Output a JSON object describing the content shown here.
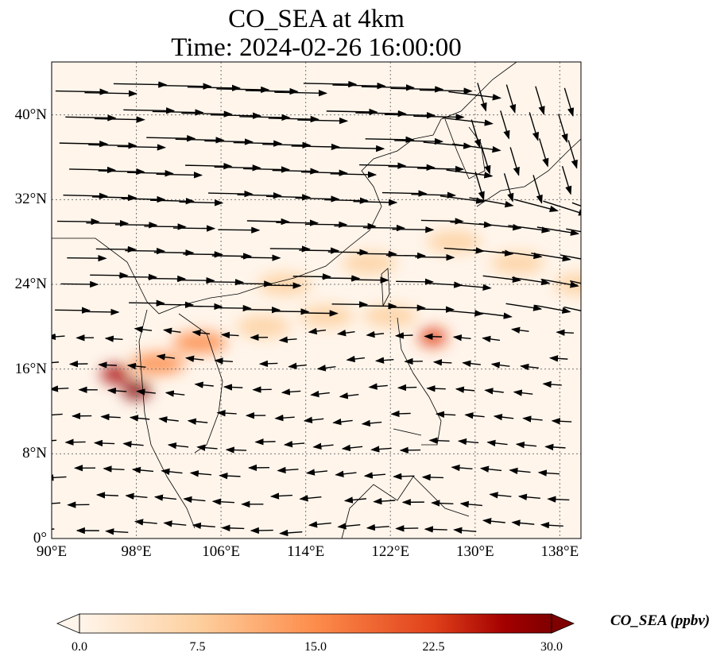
{
  "title_line1": "CO_SEA at 4km",
  "title_line2": "Time: 2024-02-26 16:00:00",
  "chart_data": {
    "type": "heatmap",
    "title": "CO_SEA at 4km / Time: 2024-02-26 16:00:00",
    "lon_range": [
      90,
      140
    ],
    "lat_range": [
      0,
      45
    ],
    "x_ticks": [
      {
        "v": 90,
        "label": "90°E"
      },
      {
        "v": 98,
        "label": "98°E"
      },
      {
        "v": 106,
        "label": "106°E"
      },
      {
        "v": 114,
        "label": "114°E"
      },
      {
        "v": 122,
        "label": "122°E"
      },
      {
        "v": 130,
        "label": "130°E"
      },
      {
        "v": 138,
        "label": "138°E"
      }
    ],
    "y_ticks": [
      {
        "v": 0,
        "label": "0°"
      },
      {
        "v": 8,
        "label": "8°N"
      },
      {
        "v": 16,
        "label": "16°N"
      },
      {
        "v": 24,
        "label": "24°N"
      },
      {
        "v": 32,
        "label": "32°N"
      },
      {
        "v": 40,
        "label": "40°N"
      }
    ],
    "grid": true,
    "colorbar": {
      "label": "CO_SEA (ppbv)",
      "min": 0,
      "max": 30,
      "ticks": [
        "0.0",
        "7.5",
        "15.0",
        "22.5",
        "30.0"
      ],
      "colors": [
        "#fff5eb",
        "#fdd09f",
        "#fd8c4b",
        "#e0401a",
        "#a30000",
        "#7f0000"
      ],
      "extend": "both"
    },
    "plume": [
      {
        "lon": 96,
        "lat": 15.5,
        "value": 26
      },
      {
        "lon": 98,
        "lat": 14,
        "value": 28
      },
      {
        "lon": 100,
        "lat": 16.5,
        "value": 14
      },
      {
        "lon": 104,
        "lat": 18.5,
        "value": 9
      },
      {
        "lon": 110,
        "lat": 20,
        "value": 7
      },
      {
        "lon": 116,
        "lat": 21,
        "value": 6
      },
      {
        "lon": 122,
        "lat": 21,
        "value": 6
      },
      {
        "lon": 126,
        "lat": 19,
        "value": 18
      },
      {
        "lon": 112,
        "lat": 24,
        "value": 5
      },
      {
        "lon": 120,
        "lat": 26,
        "value": 6
      },
      {
        "lon": 128,
        "lat": 28,
        "value": 8
      },
      {
        "lon": 134,
        "lat": 26,
        "value": 6
      },
      {
        "lon": 140,
        "lat": 24,
        "value": 4
      }
    ]
  }
}
